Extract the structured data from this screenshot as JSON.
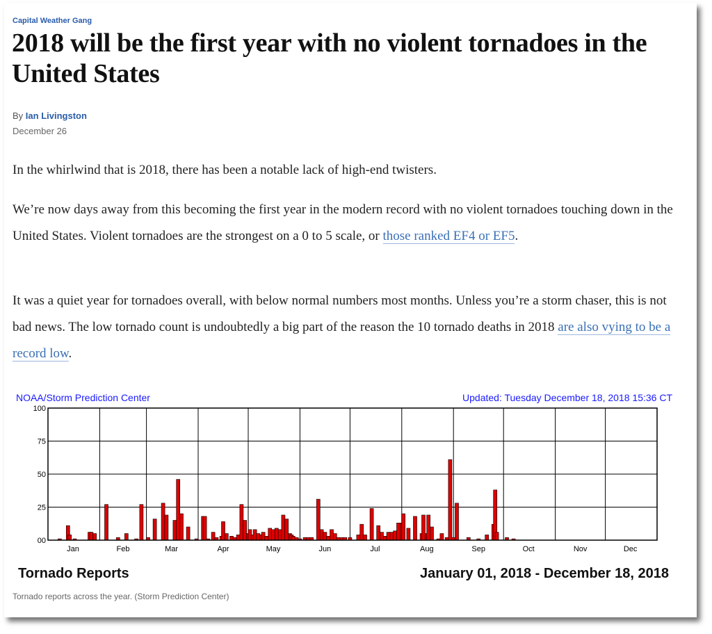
{
  "article": {
    "kicker": "Capital Weather Gang",
    "headline": "2018 will be the first year with no violent tornadoes in the United States",
    "byline_prefix": "By ",
    "author": "Ian Livingston",
    "date": "December 26",
    "p1": "In the whirlwind that is 2018, there has been a notable lack of high-end twisters.",
    "p2_text": "We’re now days away from this becoming the first year in the modern record with no violent tornadoes touching down in the United States. Violent tornadoes are the strongest on a 0 to 5 scale, or ",
    "p2_link": "those ranked EF4 or EF5",
    "p2_end": ".",
    "p3_text": "It was a quiet year for tornadoes overall, with below normal numbers most months. Unless you’re a storm chaser, this is not bad news. The low tornado count is undoubtedly a big part of the reason the 10 tornado deaths in 2018 ",
    "p3_link": "are also vying to be a record low",
    "p3_end": ".",
    "caption": "Tornado reports across the year. (Storm Prediction Center)"
  },
  "chart_data": {
    "type": "bar",
    "source_label": "NOAA/Storm Prediction Center",
    "updated_label": "Updated:  Tuesday December 18, 2018 15:36 CT",
    "title": "Tornado Reports",
    "date_range": "January 01, 2018 - December 18, 2018",
    "ylim": [
      0,
      100
    ],
    "yticks": [
      "00",
      "25",
      "50",
      "75",
      "100"
    ],
    "month_labels": [
      "Jan",
      "Feb",
      "Mar",
      "Apr",
      "May",
      "Jun",
      "Jul",
      "Aug",
      "Sep",
      "Oct",
      "Nov",
      "Dec"
    ],
    "bar_color": "#dd0000",
    "grid": true,
    "points": [
      [
        7,
        1
      ],
      [
        12,
        11
      ],
      [
        13,
        4
      ],
      [
        16,
        1
      ],
      [
        25,
        6
      ],
      [
        26,
        6
      ],
      [
        28,
        5
      ],
      [
        35,
        27
      ],
      [
        42,
        2
      ],
      [
        47,
        5
      ],
      [
        53,
        1
      ],
      [
        56,
        27
      ],
      [
        60,
        2
      ],
      [
        64,
        16
      ],
      [
        69,
        28
      ],
      [
        71,
        19
      ],
      [
        76,
        15
      ],
      [
        78,
        46
      ],
      [
        80,
        20
      ],
      [
        84,
        10
      ],
      [
        89,
        1
      ],
      [
        93,
        18
      ],
      [
        94,
        18
      ],
      [
        96,
        1
      ],
      [
        99,
        6
      ],
      [
        101,
        2
      ],
      [
        104,
        3
      ],
      [
        105,
        14
      ],
      [
        107,
        5
      ],
      [
        110,
        3
      ],
      [
        112,
        2
      ],
      [
        114,
        4
      ],
      [
        116,
        27
      ],
      [
        118,
        15
      ],
      [
        120,
        5
      ],
      [
        121,
        8
      ],
      [
        123,
        4
      ],
      [
        124,
        8
      ],
      [
        126,
        5
      ],
      [
        128,
        4
      ],
      [
        129,
        6
      ],
      [
        131,
        3
      ],
      [
        133,
        9
      ],
      [
        135,
        8
      ],
      [
        137,
        9
      ],
      [
        139,
        8
      ],
      [
        141,
        19
      ],
      [
        143,
        16
      ],
      [
        145,
        5
      ],
      [
        146,
        4
      ],
      [
        147,
        3
      ],
      [
        149,
        2
      ],
      [
        151,
        1
      ],
      [
        154,
        2
      ],
      [
        156,
        2
      ],
      [
        158,
        2
      ],
      [
        162,
        31
      ],
      [
        164,
        8
      ],
      [
        166,
        6
      ],
      [
        168,
        3
      ],
      [
        170,
        8
      ],
      [
        172,
        5
      ],
      [
        174,
        2
      ],
      [
        176,
        2
      ],
      [
        178,
        2
      ],
      [
        181,
        2
      ],
      [
        186,
        4
      ],
      [
        188,
        12
      ],
      [
        190,
        4
      ],
      [
        194,
        24
      ],
      [
        198,
        11
      ],
      [
        200,
        6
      ],
      [
        202,
        3
      ],
      [
        204,
        6
      ],
      [
        206,
        6
      ],
      [
        208,
        7
      ],
      [
        210,
        13
      ],
      [
        212,
        13
      ],
      [
        213,
        20
      ],
      [
        216,
        9
      ],
      [
        220,
        18
      ],
      [
        224,
        5
      ],
      [
        225,
        19
      ],
      [
        227,
        5
      ],
      [
        228,
        19
      ],
      [
        230,
        10
      ],
      [
        234,
        1
      ],
      [
        236,
        5
      ],
      [
        239,
        2
      ],
      [
        241,
        61
      ],
      [
        243,
        2
      ],
      [
        245,
        28
      ],
      [
        252,
        2
      ],
      [
        258,
        1
      ],
      [
        263,
        4
      ],
      [
        267,
        12
      ],
      [
        268,
        38
      ],
      [
        269,
        6
      ],
      [
        275,
        2
      ],
      [
        279,
        1
      ]
    ]
  }
}
